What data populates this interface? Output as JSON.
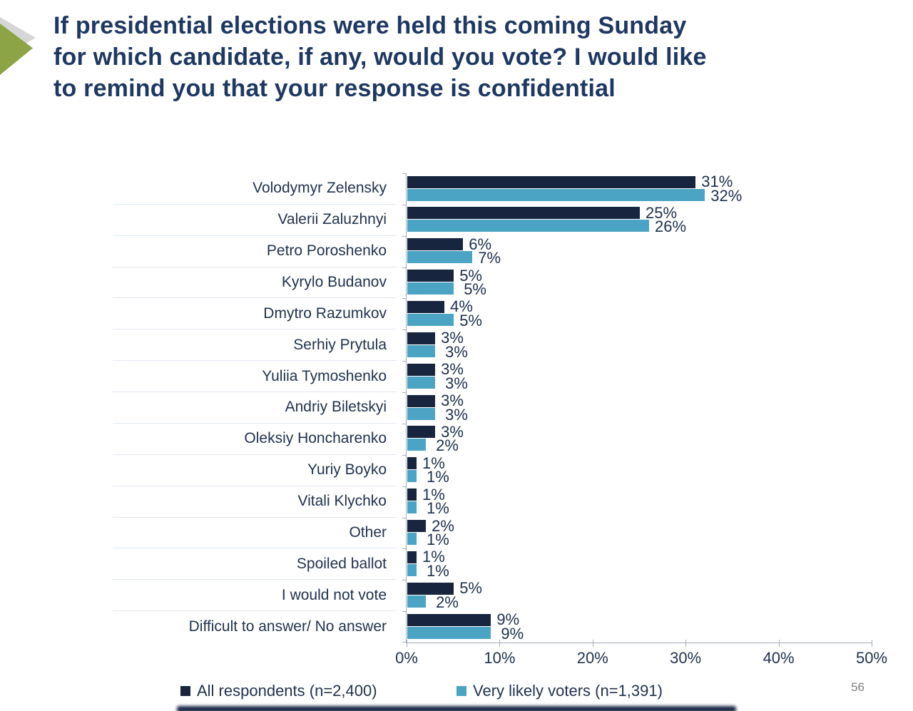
{
  "title": {
    "lines": [
      "If presidential elections were held this coming Sunday",
      "for which candidate, if any, would you vote? I would like",
      "to remind you that your response is confidential"
    ]
  },
  "page_number": "56",
  "colors": {
    "navy_series": "#17253f",
    "blue_series": "#4ba4c4",
    "title_text": "#1e3862",
    "body_text": "#21334f",
    "axis_line": "#a3adb9",
    "page_number_gray": "#7f7f7f",
    "arrow_green": "#8ca445",
    "arrow_shadow": "#d6d6d6"
  },
  "legend": [
    {
      "label": "All respondents (n=2,400)",
      "color": "#17253f"
    },
    {
      "label": "Very likely voters (n=1,391)",
      "color": "#4ba4c4"
    }
  ],
  "chart_data": {
    "type": "bar",
    "orientation": "horizontal",
    "title": "If presidential elections were held this coming Sunday for which candidate, if any, would you vote? I would like to remind you that your response is confidential",
    "categories": [
      "Volodymyr Zelensky",
      "Valerii Zaluzhnyi",
      "Petro Poroshenko",
      "Kyrylo Budanov",
      "Dmytro Razumkov",
      "Serhiy Prytula",
      "Yuliia Tymoshenko",
      "Andriy Biletskyi",
      "Oleksiy Honcharenko",
      "Yuriy Boyko",
      "Vitali Klychko",
      "Other",
      "Spoiled ballot",
      "I would not vote",
      "Difficult to answer/ No answer"
    ],
    "series": [
      {
        "name": "All respondents (n=2,400)",
        "color": "#17253f",
        "values": [
          31,
          25,
          6,
          5,
          4,
          3,
          3,
          3,
          3,
          1,
          1,
          2,
          1,
          5,
          9
        ]
      },
      {
        "name": "Very likely voters (n=1,391)",
        "color": "#4ba4c4",
        "values": [
          32,
          26,
          7,
          5,
          5,
          3,
          3,
          3,
          2,
          1,
          1,
          1,
          1,
          2,
          9
        ]
      }
    ],
    "value_suffix": "%",
    "xlim": [
      0,
      50
    ],
    "x_ticks": [
      "0%",
      "10%",
      "20%",
      "30%",
      "40%",
      "50%"
    ],
    "grid": false,
    "legend_position": "bottom",
    "value_labels": "outside-end"
  }
}
